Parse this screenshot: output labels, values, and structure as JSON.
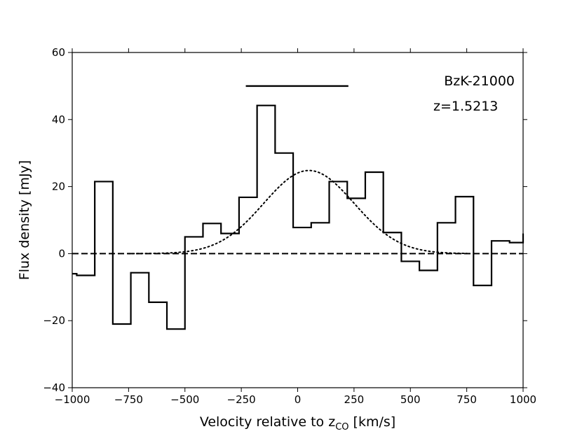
{
  "chart_data": {
    "type": "line",
    "title": "",
    "xlabel": "Velocity relative to z",
    "xlabel_sub": "CO",
    "xlabel_unit": " [km/s]",
    "ylabel": "Flux density [mJy]",
    "xlim": [
      -1000,
      1000
    ],
    "ylim": [
      -40,
      60
    ],
    "xticks": [
      -1000,
      -750,
      -500,
      -250,
      0,
      250,
      500,
      750,
      1000
    ],
    "xtick_labels": [
      "−1000",
      "−750",
      "−500",
      "−250",
      "0",
      "250",
      "500",
      "750",
      "1000"
    ],
    "yticks": [
      -40,
      -20,
      0,
      20,
      40,
      60
    ],
    "ytick_labels": [
      "−40",
      "−20",
      "0",
      "20",
      "40",
      "60"
    ],
    "grid": false,
    "annotations": [
      "BzK-21000",
      "z=1.5213"
    ],
    "series": [
      {
        "style": "steps",
        "bin_edges": [
          -1000,
          -980,
          -900,
          -820,
          -740,
          -660,
          -580,
          -500,
          -420,
          -340,
          -260,
          -180,
          -100,
          -20,
          60,
          140,
          220,
          300,
          380,
          460,
          540,
          620,
          700,
          780,
          860,
          940,
          1000
        ],
        "values": [
          -6.0,
          -6.5,
          21.5,
          -21.0,
          -5.7,
          -14.5,
          -22.5,
          5.0,
          9.0,
          6.0,
          16.8,
          44.2,
          30.0,
          7.8,
          9.2,
          21.5,
          16.5,
          24.3,
          6.3,
          -2.3,
          -5.0,
          9.2,
          17.0,
          -9.5,
          3.8,
          3.3
        ],
        "final_value": 6.0
      },
      {
        "style": "dotted",
        "model": "gaussian",
        "amplitude": 24.8,
        "center": 50,
        "sigma": 200,
        "x_range": [
          -750,
          750
        ]
      },
      {
        "style": "dashed",
        "y": 0
      }
    ],
    "line_width_bar": {
      "x": [
        -230,
        225
      ],
      "y": 50
    }
  }
}
